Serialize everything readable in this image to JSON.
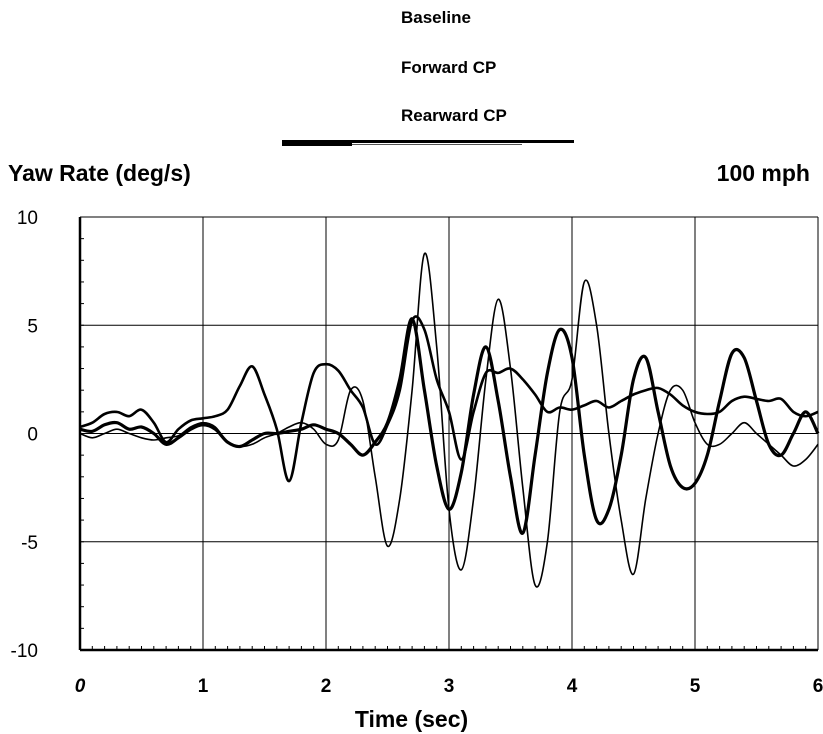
{
  "chart_data": {
    "type": "line",
    "legend": [
      "Baseline",
      "Forward CP",
      "Rearward CP"
    ],
    "ylabel": "Yaw Rate (deg/s)",
    "xlabel": "Time (sec)",
    "annotation": "100 mph",
    "xlim": [
      0,
      6
    ],
    "ylim": [
      -10,
      10
    ],
    "xticks": [
      "0",
      "1",
      "2",
      "3",
      "4",
      "5",
      "6"
    ],
    "yticks": [
      "10",
      "5",
      "0",
      "-5",
      "-10"
    ],
    "grid": true,
    "series": [
      {
        "x": [
          0,
          0.1,
          0.2,
          0.3,
          0.4,
          0.5,
          0.6,
          0.7,
          0.8,
          0.9,
          1.0,
          1.1,
          1.2,
          1.3,
          1.4,
          1.5,
          1.6,
          1.7,
          1.8,
          1.9,
          2.0,
          2.1,
          2.2,
          2.3,
          2.4,
          2.5,
          2.6,
          2.7,
          2.8,
          2.9,
          3.0,
          3.1,
          3.2,
          3.3,
          3.4,
          3.5,
          3.6,
          3.7,
          3.8,
          3.9,
          4.0,
          4.1,
          4.2,
          4.3,
          4.4,
          4.5,
          4.6,
          4.7,
          4.8,
          4.9,
          5.0,
          5.1,
          5.2,
          5.3,
          5.4,
          5.5,
          5.6,
          5.7,
          5.8,
          5.9,
          6.0
        ],
        "values": [
          0.3,
          0.5,
          0.9,
          1.0,
          0.8,
          1.1,
          0.5,
          -0.4,
          0.2,
          0.6,
          0.7,
          0.8,
          1.1,
          2.2,
          3.1,
          1.8,
          0.2,
          -2.2,
          0.5,
          2.8,
          3.2,
          2.9,
          2.0,
          1.2,
          -0.5,
          0.4,
          2.0,
          5.2,
          4.8,
          2.5,
          1.0,
          -1.2,
          1.0,
          2.8,
          2.8,
          3.0,
          2.5,
          1.8,
          1.0,
          1.2,
          1.1,
          1.3,
          1.5,
          1.2,
          1.5,
          1.8,
          2.0,
          2.1,
          1.8,
          1.3,
          1.0,
          0.9,
          1.0,
          1.5,
          1.7,
          1.6,
          1.5,
          1.6,
          1.0,
          0.8,
          1.0
        ]
      },
      {
        "x": [
          0,
          0.1,
          0.2,
          0.3,
          0.4,
          0.5,
          0.6,
          0.7,
          0.8,
          0.9,
          1.0,
          1.1,
          1.2,
          1.3,
          1.4,
          1.5,
          1.6,
          1.7,
          1.8,
          1.9,
          2.0,
          2.1,
          2.2,
          2.3,
          2.4,
          2.5,
          2.6,
          2.7,
          2.8,
          2.9,
          3.0,
          3.1,
          3.2,
          3.3,
          3.4,
          3.5,
          3.6,
          3.7,
          3.8,
          3.9,
          4.0,
          4.1,
          4.2,
          4.3,
          4.4,
          4.5,
          4.6,
          4.7,
          4.8,
          4.9,
          5.0,
          5.1,
          5.2,
          5.3,
          5.4,
          5.5,
          5.6,
          5.7,
          5.8,
          5.9,
          6.0
        ],
        "values": [
          0.2,
          0.1,
          0.4,
          0.5,
          0.2,
          0.3,
          0.0,
          -0.5,
          -0.2,
          0.2,
          0.4,
          0.2,
          -0.4,
          -0.6,
          -0.3,
          0.0,
          0.0,
          0.1,
          0.2,
          0.4,
          0.2,
          0.0,
          -0.5,
          -1.0,
          -0.4,
          0.5,
          2.5,
          5.3,
          2.0,
          -1.5,
          -3.5,
          -1.8,
          1.8,
          4.0,
          1.5,
          -2.0,
          -4.6,
          -1.0,
          2.8,
          4.8,
          3.5,
          -1.0,
          -4.0,
          -3.5,
          -1.0,
          2.5,
          3.5,
          1.0,
          -1.5,
          -2.5,
          -2.3,
          -1.0,
          1.5,
          3.7,
          3.5,
          1.5,
          -0.5,
          -1.0,
          0.0,
          1.0,
          0.0
        ]
      },
      {
        "x": [
          0,
          0.1,
          0.2,
          0.3,
          0.4,
          0.5,
          0.6,
          0.7,
          0.8,
          0.9,
          1.0,
          1.1,
          1.2,
          1.3,
          1.4,
          1.5,
          1.6,
          1.7,
          1.8,
          1.9,
          2.0,
          2.1,
          2.2,
          2.3,
          2.4,
          2.5,
          2.6,
          2.7,
          2.8,
          2.9,
          3.0,
          3.1,
          3.2,
          3.3,
          3.4,
          3.5,
          3.6,
          3.7,
          3.8,
          3.9,
          4.0,
          4.1,
          4.2,
          4.3,
          4.4,
          4.5,
          4.6,
          4.7,
          4.8,
          4.9,
          5.0,
          5.1,
          5.2,
          5.3,
          5.4,
          5.5,
          5.6,
          5.7,
          5.8,
          5.9,
          6.0
        ],
        "values": [
          0.0,
          -0.2,
          0.0,
          0.2,
          0.0,
          -0.2,
          -0.3,
          -0.2,
          -0.1,
          0.3,
          0.5,
          0.3,
          -0.4,
          -0.6,
          -0.5,
          -0.2,
          0.0,
          0.3,
          0.5,
          0.2,
          -0.5,
          -0.3,
          2.0,
          1.5,
          -2.0,
          -5.2,
          -3.0,
          2.0,
          8.3,
          4.0,
          -3.5,
          -6.3,
          -3.0,
          2.5,
          6.2,
          3.0,
          -2.5,
          -7.0,
          -5.0,
          1.0,
          2.5,
          7.0,
          5.0,
          0.0,
          -4.0,
          -6.5,
          -3.0,
          0.0,
          2.0,
          2.0,
          0.5,
          -0.5,
          -0.5,
          0.0,
          0.5,
          0.0,
          -0.5,
          -1.0,
          -1.5,
          -1.2,
          -0.5
        ]
      }
    ]
  }
}
